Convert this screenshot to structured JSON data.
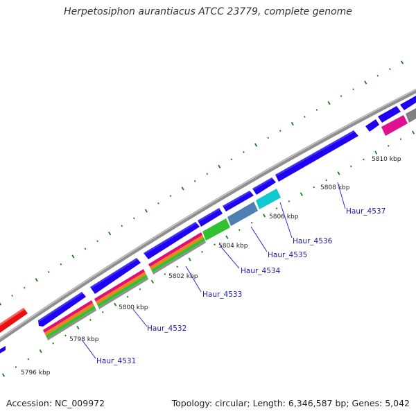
{
  "title": "Herpetosiphon aurantiacus ATCC 23779, complete genome",
  "footer": {
    "accession": "Accession: NC_009972",
    "stats": "Topology: circular; Length: 6,346,587 bp; Genes: 5,042"
  },
  "colors": {
    "backbone": "#8f8f8f",
    "cds": "#1f00f0",
    "rna": "#e01010",
    "gc_skew_dots": "#1a7a1a"
  },
  "ticks": [
    {
      "label": "5796 kbp"
    },
    {
      "label": "5798 kbp"
    },
    {
      "label": "5800 kbp"
    },
    {
      "label": "5802 kbp"
    },
    {
      "label": "5804 kbp"
    },
    {
      "label": "5806 kbp"
    },
    {
      "label": "5808 kbp"
    },
    {
      "label": "5810 kbp"
    }
  ],
  "genes": [
    {
      "label": "Haur_4531"
    },
    {
      "label": "Haur_4532"
    },
    {
      "label": "Haur_4533"
    },
    {
      "label": "Haur_4534"
    },
    {
      "label": "Haur_4535"
    },
    {
      "label": "Haur_4536"
    },
    {
      "label": "Haur_4537"
    }
  ]
}
